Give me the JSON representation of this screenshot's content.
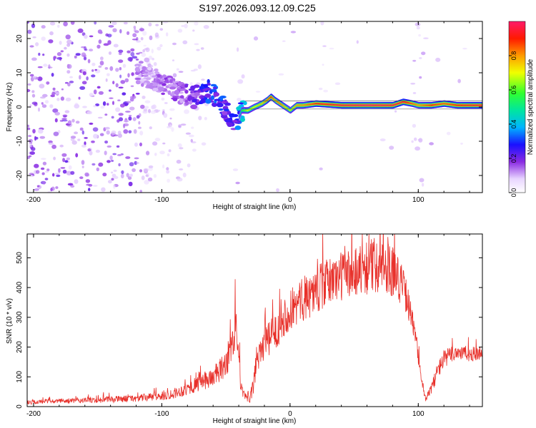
{
  "title": "S197.2026.093.12.09.C25",
  "colors": {
    "snr_line": "#e8302a",
    "axis": "#000000",
    "background": "#ffffff"
  },
  "chart_data": [
    {
      "type": "heatmap",
      "name": "spectrogram",
      "xlabel": "Height of straight line (km)",
      "ylabel": "Frequency (Hz)",
      "xlim": [
        -205,
        150
      ],
      "ylim": [
        -25,
        25
      ],
      "xticks": [
        -200,
        -100,
        0,
        100
      ],
      "xtick_labels": [
        "-200",
        "-100",
        "0",
        "100"
      ],
      "yticks": [
        -20,
        -10,
        0,
        10,
        20
      ],
      "ytick_labels": [
        "-20",
        "-10",
        "0",
        "10",
        "20"
      ],
      "colorbar": {
        "label": "Normalized spectral amplitude",
        "range": [
          0,
          1
        ],
        "ticks": [
          0.0,
          0.2,
          0.4,
          0.6,
          0.8
        ],
        "tick_labels": [
          "0.0",
          "0.2",
          "0.4",
          "0.6",
          "0.8"
        ]
      },
      "ridge_track": {
        "x": [
          -120,
          -105,
          -95,
          -85,
          -75,
          -65,
          -55,
          -48,
          -42,
          -38,
          -33,
          -28,
          -22,
          -18,
          -15,
          -12,
          -8,
          -4,
          0,
          5,
          10,
          20,
          40,
          60,
          80,
          88,
          95,
          100,
          110,
          120,
          130,
          150
        ],
        "freq": [
          10,
          8,
          6,
          4,
          3,
          5,
          2,
          -2,
          -5,
          -1,
          -1,
          0,
          1,
          2,
          3,
          2,
          1,
          0,
          -1,
          0.5,
          0.5,
          1,
          0.5,
          0.5,
          0.5,
          1.5,
          1,
          0.5,
          0.5,
          1,
          0.5,
          0.5
        ],
        "amplitude": [
          0.15,
          0.15,
          0.2,
          0.2,
          0.25,
          0.35,
          0.35,
          0.3,
          0.3,
          0.55,
          0.7,
          0.7,
          0.75,
          0.85,
          0.9,
          0.8,
          0.85,
          0.75,
          0.7,
          0.8,
          0.8,
          0.9,
          0.95,
          1.0,
          0.95,
          0.95,
          0.85,
          0.8,
          0.9,
          0.85,
          0.9,
          0.95
        ]
      }
    },
    {
      "type": "line",
      "name": "snr",
      "xlabel": "Height of straight line (km)",
      "ylabel": "SNR (10 * v/v)",
      "xlim": [
        -205,
        150
      ],
      "ylim": [
        0,
        580
      ],
      "xticks": [
        -200,
        -100,
        0,
        100
      ],
      "xtick_labels": [
        "-200",
        "-100",
        "0",
        "100"
      ],
      "yticks": [
        0,
        100,
        200,
        300,
        400,
        500
      ],
      "ytick_labels": [
        "0",
        "100",
        "200",
        "300",
        "400",
        "500"
      ],
      "series": [
        {
          "name": "SNR",
          "x": [
            -205,
            -180,
            -150,
            -120,
            -100,
            -90,
            -80,
            -70,
            -60,
            -52,
            -45,
            -42,
            -40,
            -38,
            -35,
            -32,
            -29,
            -26,
            -23,
            -20,
            -15,
            -10,
            -5,
            0,
            10,
            20,
            30,
            40,
            50,
            60,
            70,
            80,
            85,
            90,
            95,
            100,
            103,
            106,
            110,
            115,
            120,
            130,
            140,
            150
          ],
          "y": [
            15,
            18,
            22,
            28,
            35,
            45,
            60,
            80,
            100,
            130,
            200,
            270,
            140,
            60,
            30,
            20,
            60,
            160,
            200,
            210,
            230,
            260,
            300,
            320,
            360,
            390,
            420,
            440,
            455,
            470,
            480,
            460,
            430,
            380,
            300,
            170,
            80,
            20,
            60,
            120,
            160,
            185,
            175,
            180
          ],
          "noise": [
            8,
            8,
            10,
            12,
            15,
            18,
            22,
            28,
            35,
            45,
            60,
            70,
            50,
            25,
            15,
            12,
            30,
            60,
            60,
            60,
            60,
            60,
            65,
            70,
            75,
            80,
            80,
            85,
            90,
            95,
            95,
            90,
            80,
            60,
            40,
            25,
            15,
            8,
            20,
            30,
            30,
            30,
            25,
            25
          ]
        }
      ]
    }
  ]
}
